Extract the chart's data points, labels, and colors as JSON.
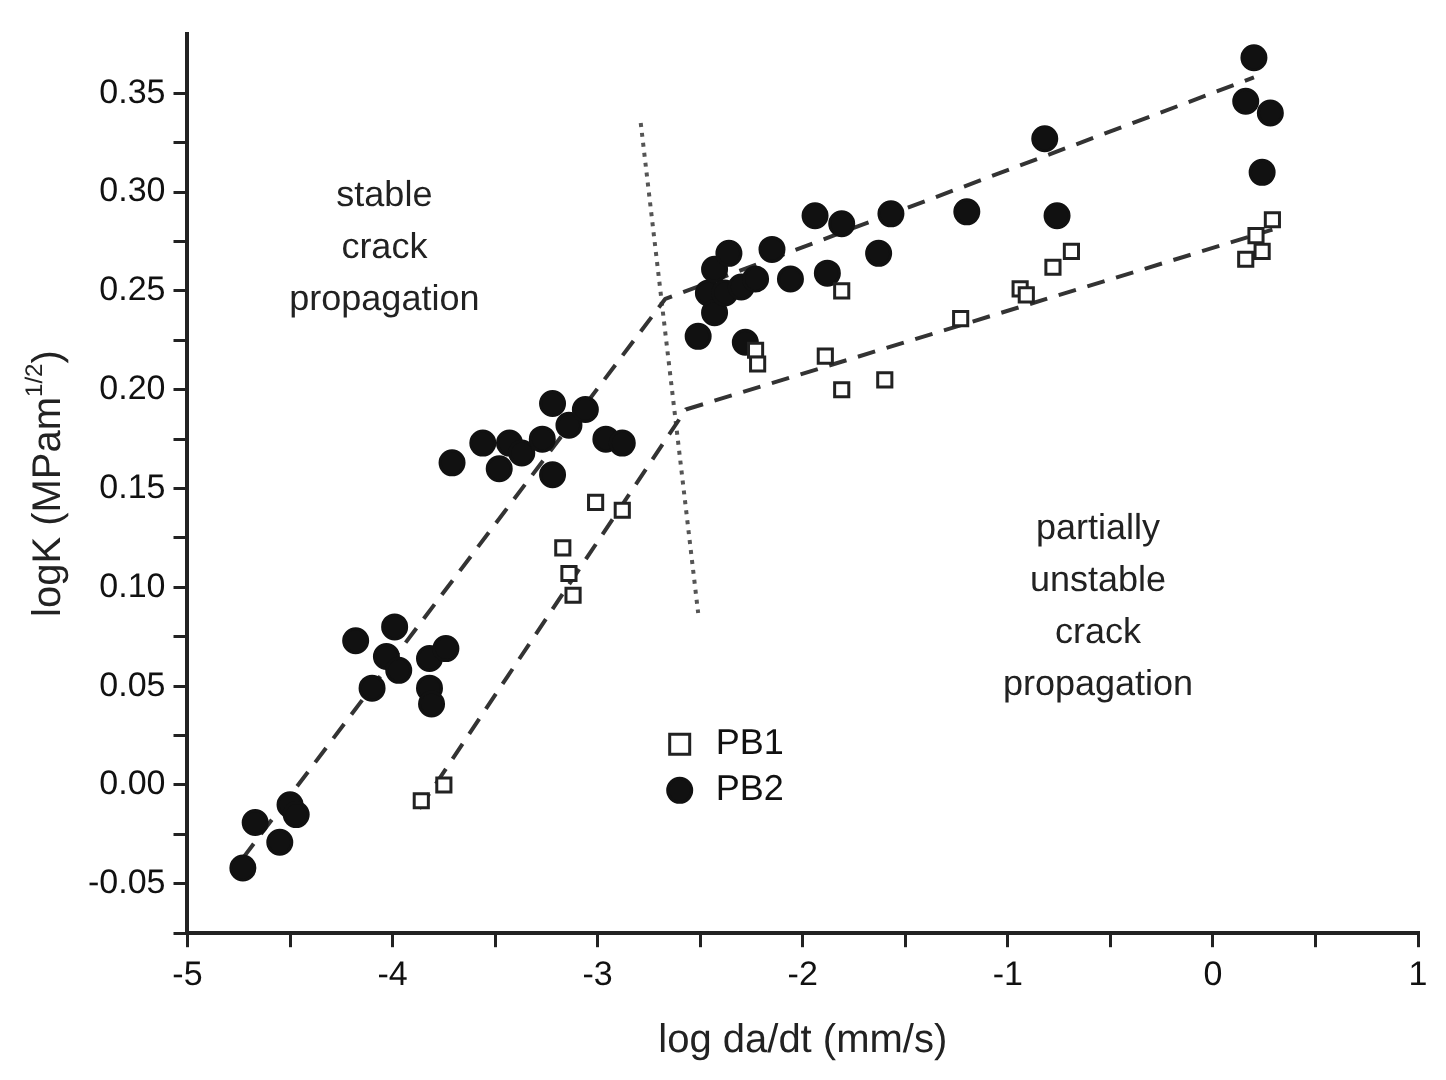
{
  "chart_data": {
    "type": "scatter",
    "xlabel": "log da/dt (mm/s)",
    "ylabel": "logK (MPam$^{1/2}$)",
    "xlim": [
      -5,
      1
    ],
    "ylim": [
      -0.075,
      0.38
    ],
    "xticks": [
      -5,
      {
        "value": -4.5,
        "label": null
      },
      -4,
      {
        "value": -3.5,
        "label": null
      },
      -3,
      {
        "value": -2.5,
        "label": null
      },
      -2,
      {
        "value": -1.5,
        "label": null
      },
      -1,
      {
        "value": -0.5,
        "label": null
      },
      0,
      {
        "value": 0.5,
        "label": null
      },
      1
    ],
    "yticks": [
      {
        "value": -0.075,
        "label": null
      },
      -0.05,
      {
        "value": -0.025,
        "label": null
      },
      {
        "value": 0,
        "label": "0.00"
      },
      {
        "value": 0.025,
        "label": null
      },
      0.05,
      {
        "value": 0.075,
        "label": null
      },
      {
        "value": 0.1,
        "label": "0.10"
      },
      {
        "value": 0.125,
        "label": null
      },
      0.15,
      {
        "value": 0.175,
        "label": null
      },
      {
        "value": 0.2,
        "label": "0.20"
      },
      {
        "value": 0.225,
        "label": null
      },
      0.25,
      {
        "value": 0.275,
        "label": null
      },
      {
        "value": 0.3,
        "label": "0.30"
      },
      {
        "value": 0.325,
        "label": null
      },
      0.35
    ],
    "grid": false,
    "legend": "bottom",
    "annotations": [
      "stable crack propagation",
      "partially unstable crack propagation"
    ],
    "series": [
      {
        "name": "PB1",
        "type": "scatter",
        "marker": "square",
        "color": "#222222",
        "x": [
          -3.86,
          -3.75,
          -3.17,
          -3.14,
          -3.12,
          -3.01,
          -2.88,
          -2.23,
          -2.22,
          -1.89,
          -1.81,
          -1.81,
          -1.6,
          -1.23,
          -0.94,
          -0.91,
          -0.78,
          -0.69,
          0.16,
          0.21,
          0.24,
          0.29
        ],
        "values": [
          -0.008,
          0.0,
          0.12,
          0.107,
          0.096,
          0.143,
          0.139,
          0.22,
          0.213,
          0.217,
          0.25,
          0.2,
          0.205,
          0.236,
          0.251,
          0.248,
          0.262,
          0.27,
          0.266,
          0.278,
          0.27,
          0.286
        ]
      },
      {
        "name": "PB2",
        "type": "scatter",
        "marker": "circle",
        "color": "#111111",
        "x": [
          -4.73,
          -4.67,
          -4.55,
          -4.52,
          -4.5,
          -4.47,
          -4.18,
          -4.1,
          -4.03,
          -3.99,
          -3.97,
          -3.82,
          -3.82,
          -3.81,
          -3.74,
          -3.71,
          -3.56,
          -3.48,
          -3.43,
          -3.37,
          -3.27,
          -3.22,
          -3.22,
          -3.17,
          -3.14,
          -3.06,
          -2.96,
          -2.88,
          -2.51,
          -2.49,
          -2.46,
          -2.43,
          -2.43,
          -2.38,
          -2.36,
          -2.3,
          -2.28,
          -2.23,
          -2.15,
          -2.06,
          -1.97,
          -1.94,
          -1.88,
          -1.81,
          -1.63,
          -1.57,
          -1.2,
          -0.82,
          -0.76,
          0.16,
          0.2,
          0.24,
          0.28
        ],
        "values": [
          -0.042,
          -0.019,
          -0.029,
          null,
          -0.01,
          -0.015,
          0.073,
          0.049,
          0.065,
          0.08,
          0.058,
          0.064,
          0.049,
          0.041,
          0.069,
          0.163,
          0.173,
          0.16,
          0.173,
          0.168,
          0.175,
          0.193,
          0.157,
          null,
          0.182,
          0.19,
          0.175,
          0.173,
          0.227,
          null,
          0.249,
          0.261,
          0.239,
          0.249,
          0.269,
          0.252,
          0.224,
          0.256,
          0.271,
          0.256,
          null,
          0.288,
          0.259,
          0.284,
          0.269,
          0.289,
          0.29,
          0.327,
          0.288,
          0.346,
          0.368,
          0.31,
          0.34
        ]
      },
      {
        "type": "line",
        "marker": "none",
        "line_style": "dashed",
        "color": "#333333",
        "x": [
          -4.73,
          -2.67,
          0.2
        ],
        "values": [
          -0.037,
          0.246,
          0.358
        ]
      },
      {
        "type": "line",
        "marker": "none",
        "line_style": "dashed",
        "color": "#333333",
        "x": [
          -3.87,
          -2.57,
          0.29
        ],
        "values": [
          -0.012,
          0.19,
          0.281
        ]
      },
      {
        "type": "line",
        "marker": "none",
        "line_style": "dotted",
        "color": "#555555",
        "x": [
          -2.79,
          -2.51
        ],
        "values": [
          0.335,
          0.087
        ]
      }
    ]
  }
}
